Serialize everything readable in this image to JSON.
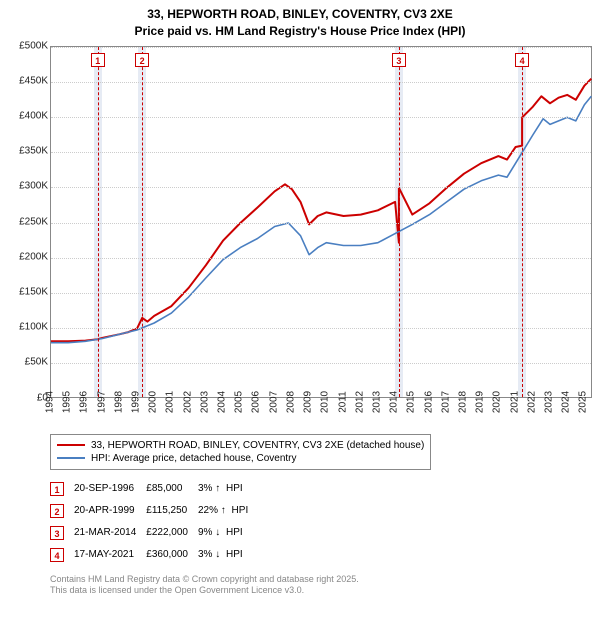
{
  "title_line1": "33, HEPWORTH ROAD, BINLEY, COVENTRY, CV3 2XE",
  "title_line2": "Price paid vs. HM Land Registry's House Price Index (HPI)",
  "chart": {
    "type": "line",
    "background_color": "#ffffff",
    "grid_color": "#cccccc",
    "border_color": "#888888",
    "x": {
      "min": 1994,
      "max": 2025.5,
      "ticks": [
        1994,
        1995,
        1996,
        1997,
        1998,
        1999,
        2000,
        2001,
        2002,
        2003,
        2004,
        2005,
        2006,
        2007,
        2008,
        2009,
        2010,
        2011,
        2012,
        2013,
        2014,
        2015,
        2016,
        2017,
        2018,
        2019,
        2020,
        2021,
        2022,
        2023,
        2024,
        2025
      ]
    },
    "y": {
      "min": 0,
      "max": 500000,
      "tick_step": 50000,
      "labels": [
        "£0",
        "£50K",
        "£100K",
        "£150K",
        "£200K",
        "£250K",
        "£300K",
        "£350K",
        "£400K",
        "£450K",
        "£500K"
      ]
    },
    "marker_band_color": "rgba(200,210,230,0.45)",
    "marker_rule_color": "#cc0000",
    "markers": [
      {
        "n": "1",
        "year": 1996.72
      },
      {
        "n": "2",
        "year": 1999.3
      },
      {
        "n": "3",
        "year": 2014.22
      },
      {
        "n": "4",
        "year": 2021.38
      }
    ],
    "series": [
      {
        "name": "price_paid",
        "color": "#cc0000",
        "width": 2,
        "points": [
          [
            1994.0,
            82000
          ],
          [
            1995.0,
            82000
          ],
          [
            1996.0,
            83000
          ],
          [
            1996.72,
            85000
          ],
          [
            1997.0,
            87000
          ],
          [
            1998.0,
            92000
          ],
          [
            1998.5,
            95000
          ],
          [
            1999.0,
            100000
          ],
          [
            1999.3,
            115250
          ],
          [
            1999.6,
            110000
          ],
          [
            2000.0,
            118000
          ],
          [
            2001.0,
            132000
          ],
          [
            2002.0,
            158000
          ],
          [
            2003.0,
            190000
          ],
          [
            2004.0,
            225000
          ],
          [
            2005.0,
            250000
          ],
          [
            2006.0,
            272000
          ],
          [
            2007.0,
            295000
          ],
          [
            2007.6,
            305000
          ],
          [
            2008.0,
            298000
          ],
          [
            2008.5,
            280000
          ],
          [
            2009.0,
            248000
          ],
          [
            2009.5,
            260000
          ],
          [
            2010.0,
            265000
          ],
          [
            2011.0,
            260000
          ],
          [
            2012.0,
            262000
          ],
          [
            2013.0,
            268000
          ],
          [
            2014.0,
            280000
          ],
          [
            2014.22,
            222000
          ],
          [
            2014.22,
            300000
          ],
          [
            2015.0,
            262000
          ],
          [
            2016.0,
            278000
          ],
          [
            2017.0,
            300000
          ],
          [
            2018.0,
            320000
          ],
          [
            2019.0,
            335000
          ],
          [
            2020.0,
            345000
          ],
          [
            2020.5,
            340000
          ],
          [
            2021.0,
            358000
          ],
          [
            2021.38,
            360000
          ],
          [
            2021.38,
            400000
          ],
          [
            2022.0,
            415000
          ],
          [
            2022.5,
            430000
          ],
          [
            2023.0,
            420000
          ],
          [
            2023.5,
            428000
          ],
          [
            2024.0,
            432000
          ],
          [
            2024.5,
            425000
          ],
          [
            2025.0,
            445000
          ],
          [
            2025.4,
            455000
          ]
        ]
      },
      {
        "name": "hpi",
        "color": "#4a7fc1",
        "width": 1.6,
        "points": [
          [
            1994.0,
            80000
          ],
          [
            1995.0,
            80000
          ],
          [
            1996.0,
            82000
          ],
          [
            1997.0,
            86000
          ],
          [
            1998.0,
            92000
          ],
          [
            1999.0,
            98000
          ],
          [
            2000.0,
            108000
          ],
          [
            2001.0,
            122000
          ],
          [
            2002.0,
            145000
          ],
          [
            2003.0,
            172000
          ],
          [
            2004.0,
            198000
          ],
          [
            2005.0,
            215000
          ],
          [
            2006.0,
            228000
          ],
          [
            2007.0,
            245000
          ],
          [
            2007.8,
            250000
          ],
          [
            2008.5,
            232000
          ],
          [
            2009.0,
            205000
          ],
          [
            2009.5,
            215000
          ],
          [
            2010.0,
            222000
          ],
          [
            2011.0,
            218000
          ],
          [
            2012.0,
            218000
          ],
          [
            2013.0,
            222000
          ],
          [
            2014.0,
            235000
          ],
          [
            2015.0,
            248000
          ],
          [
            2016.0,
            262000
          ],
          [
            2017.0,
            280000
          ],
          [
            2018.0,
            298000
          ],
          [
            2019.0,
            310000
          ],
          [
            2020.0,
            318000
          ],
          [
            2020.5,
            315000
          ],
          [
            2021.0,
            335000
          ],
          [
            2022.0,
            375000
          ],
          [
            2022.6,
            398000
          ],
          [
            2023.0,
            390000
          ],
          [
            2023.5,
            395000
          ],
          [
            2024.0,
            400000
          ],
          [
            2024.5,
            395000
          ],
          [
            2025.0,
            418000
          ],
          [
            2025.4,
            430000
          ]
        ]
      }
    ]
  },
  "legend": {
    "items": [
      {
        "color": "#cc0000",
        "label": "33, HEPWORTH ROAD, BINLEY, COVENTRY, CV3 2XE (detached house)"
      },
      {
        "color": "#4a7fc1",
        "label": "HPI: Average price, detached house, Coventry"
      }
    ]
  },
  "transactions": [
    {
      "n": "1",
      "date": "20-SEP-1996",
      "price": "£85,000",
      "pct": "3%",
      "arrow": "↑",
      "suffix": "HPI"
    },
    {
      "n": "2",
      "date": "20-APR-1999",
      "price": "£115,250",
      "pct": "22%",
      "arrow": "↑",
      "suffix": "HPI"
    },
    {
      "n": "3",
      "date": "21-MAR-2014",
      "price": "£222,000",
      "pct": "9%",
      "arrow": "↓",
      "suffix": "HPI"
    },
    {
      "n": "4",
      "date": "17-MAY-2021",
      "price": "£360,000",
      "pct": "3%",
      "arrow": "↓",
      "suffix": "HPI"
    }
  ],
  "footer_line1": "Contains HM Land Registry data © Crown copyright and database right 2025.",
  "footer_line2": "This data is licensed under the Open Government Licence v3.0."
}
